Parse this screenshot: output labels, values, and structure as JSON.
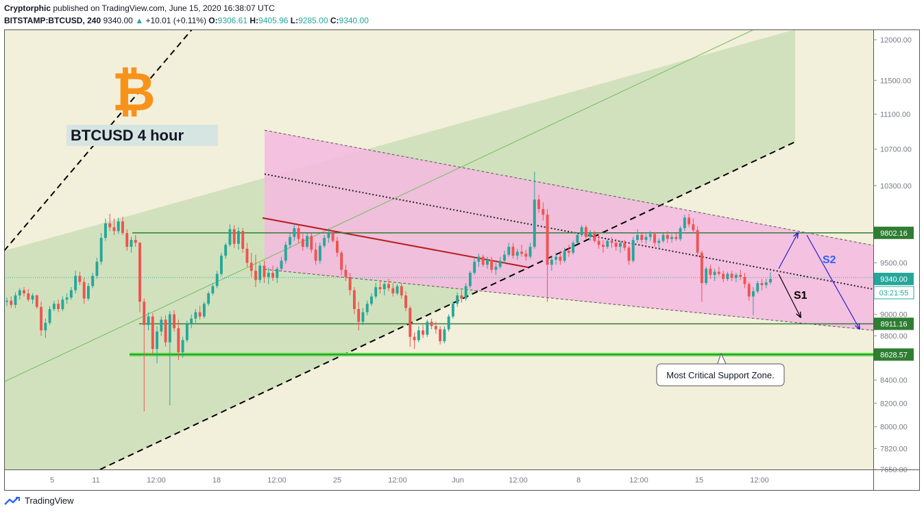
{
  "header": {
    "author": "Cryptorphic",
    "published_text": "published on TradingView.com, June 15, 2020 16:38:07 UTC",
    "symbol": "BITSTAMP:BTCUSD, 240",
    "last": "9340.00",
    "change_arrow": "▲",
    "change": "+10.01 (+0.11%)",
    "o_label": "O:",
    "o_value": "9306.61",
    "h_label": "H:",
    "h_value": "9405.96",
    "l_label": "L:",
    "l_value": "9285.00",
    "c_label": "C:",
    "c_value": "9340.00"
  },
  "footer": {
    "brand": "TradingView",
    "logo_icon": "tradingview-logo-icon"
  },
  "chart_data": {
    "type": "candlestick",
    "title": "BTCUSD 4 hour",
    "logo": "₿",
    "ylim": [
      7650,
      12150
    ],
    "y_scale": "log",
    "y_ticks": [
      7650,
      7820,
      8000,
      8200,
      8400,
      8800,
      9000,
      9500,
      9800,
      10300,
      10700,
      11100,
      11500,
      12000
    ],
    "y_tick_labels": [
      "7650.00",
      "7820.00",
      "8000.00",
      "8200.00",
      "8400.00",
      "8800.00",
      "9000.00",
      "9500.00",
      "9800.00",
      "10300.00",
      "10700.00",
      "11100.00",
      "11500.00",
      "12000.00"
    ],
    "x_tick_labels": [
      "5",
      "11",
      "12:00",
      "18",
      "12:00",
      "25",
      "12:00",
      "Jun",
      "12:00",
      "8",
      "12:00",
      "15",
      "12:00"
    ],
    "price_labels": [
      {
        "value": 9802.16,
        "label": "9802.16",
        "color": "#2e7d32"
      },
      {
        "value": 9340.0,
        "label": "9340.00",
        "color": "#26a69a"
      },
      {
        "value": 8911.16,
        "label": "8911.16",
        "color": "#2e7d32"
      },
      {
        "value": 8628.57,
        "label": "8628.57",
        "color": "#2e7d32"
      }
    ],
    "countdown_label": "03:21:55",
    "horizontal_levels": [
      9802.16,
      8911.16,
      8628.57
    ],
    "current_price": 9340.0,
    "annotations": [
      "S1",
      "S2",
      "Most Critical Support Zone."
    ],
    "colors": {
      "up": "#26a69a",
      "down": "#ef5350",
      "background": "#f2efda",
      "ascending_channel": "#c5dcb3",
      "descending_channel_fill": "#f5b8e0",
      "level_line": "#2e7d32",
      "support_zone": "#55dd44",
      "projection": "#1e1ed6",
      "s1_arrow": "#000000"
    },
    "candles": [
      [
        9120,
        9160,
        9080,
        9130
      ],
      [
        9130,
        9170,
        9060,
        9090
      ],
      [
        9090,
        9210,
        9060,
        9180
      ],
      [
        9180,
        9250,
        9140,
        9230
      ],
      [
        9230,
        9260,
        9170,
        9200
      ],
      [
        9200,
        9240,
        9120,
        9140
      ],
      [
        9140,
        9200,
        9100,
        9180
      ],
      [
        9180,
        9190,
        9050,
        9070
      ],
      [
        9070,
        9120,
        8800,
        8850
      ],
      [
        8850,
        8960,
        8780,
        8920
      ],
      [
        8920,
        9080,
        8900,
        9050
      ],
      [
        9050,
        9130,
        9030,
        9100
      ],
      [
        9100,
        9140,
        9020,
        9050
      ],
      [
        9050,
        9170,
        9030,
        9140
      ],
      [
        9140,
        9200,
        9100,
        9160
      ],
      [
        9160,
        9260,
        9140,
        9230
      ],
      [
        9230,
        9420,
        9200,
        9370
      ],
      [
        9370,
        9410,
        9280,
        9310
      ],
      [
        9310,
        9350,
        9100,
        9150
      ],
      [
        9150,
        9300,
        9130,
        9270
      ],
      [
        9270,
        9400,
        9250,
        9370
      ],
      [
        9370,
        9550,
        9340,
        9510
      ],
      [
        9510,
        9800,
        9480,
        9750
      ],
      [
        9750,
        9950,
        9720,
        9900
      ],
      [
        9900,
        10000,
        9820,
        9860
      ],
      [
        9860,
        9950,
        9780,
        9820
      ],
      [
        9820,
        9960,
        9790,
        9920
      ],
      [
        9920,
        9970,
        9780,
        9800
      ],
      [
        9800,
        9840,
        9620,
        9660
      ],
      [
        9660,
        9760,
        9600,
        9730
      ],
      [
        9730,
        9780,
        9660,
        9700
      ],
      [
        9700,
        9710,
        9020,
        9120
      ],
      [
        9120,
        9150,
        8130,
        8900
      ],
      [
        8900,
        9020,
        8850,
        8980
      ],
      [
        8980,
        9010,
        8620,
        8680
      ],
      [
        8680,
        8890,
        8550,
        8840
      ],
      [
        8840,
        8980,
        8800,
        8950
      ],
      [
        8950,
        8990,
        8700,
        8740
      ],
      [
        8740,
        9030,
        8180,
        9000
      ],
      [
        9000,
        9040,
        8840,
        8870
      ],
      [
        8870,
        8950,
        8580,
        8650
      ],
      [
        8650,
        8790,
        8600,
        8760
      ],
      [
        8760,
        8940,
        8740,
        8910
      ],
      [
        8910,
        9000,
        8870,
        8960
      ],
      [
        8960,
        9050,
        8920,
        9020
      ],
      [
        9020,
        9080,
        8950,
        8980
      ],
      [
        8980,
        9120,
        8960,
        9100
      ],
      [
        9100,
        9220,
        9080,
        9200
      ],
      [
        9200,
        9300,
        9180,
        9270
      ],
      [
        9270,
        9420,
        9250,
        9390
      ],
      [
        9390,
        9600,
        9370,
        9570
      ],
      [
        9570,
        9700,
        9540,
        9680
      ],
      [
        9680,
        9890,
        9660,
        9840
      ],
      [
        9840,
        9880,
        9650,
        9690
      ],
      [
        9690,
        9860,
        9630,
        9820
      ],
      [
        9820,
        9850,
        9600,
        9640
      ],
      [
        9640,
        9700,
        9460,
        9500
      ],
      [
        9500,
        9600,
        9360,
        9420
      ],
      [
        9420,
        9580,
        9260,
        9330
      ],
      [
        9330,
        9500,
        9300,
        9470
      ],
      [
        9470,
        9520,
        9300,
        9360
      ],
      [
        9360,
        9450,
        9290,
        9400
      ],
      [
        9400,
        9470,
        9320,
        9350
      ],
      [
        9350,
        9460,
        9300,
        9440
      ],
      [
        9440,
        9560,
        9420,
        9520
      ],
      [
        9520,
        9710,
        9490,
        9680
      ],
      [
        9680,
        9800,
        9650,
        9760
      ],
      [
        9760,
        9900,
        9720,
        9850
      ],
      [
        9850,
        9880,
        9700,
        9740
      ],
      [
        9740,
        9800,
        9620,
        9660
      ],
      [
        9660,
        9800,
        9640,
        9770
      ],
      [
        9770,
        9800,
        9600,
        9630
      ],
      [
        9630,
        9700,
        9480,
        9520
      ],
      [
        9520,
        9700,
        9490,
        9670
      ],
      [
        9670,
        9780,
        9650,
        9750
      ],
      [
        9750,
        9850,
        9700,
        9800
      ],
      [
        9800,
        9820,
        9700,
        9720
      ],
      [
        9720,
        9760,
        9560,
        9600
      ],
      [
        9600,
        9620,
        9380,
        9430
      ],
      [
        9430,
        9480,
        9320,
        9360
      ],
      [
        9360,
        9400,
        9180,
        9230
      ],
      [
        9230,
        9260,
        9000,
        9050
      ],
      [
        9050,
        9120,
        8850,
        8930
      ],
      [
        8930,
        9060,
        8900,
        9020
      ],
      [
        9020,
        9130,
        8990,
        9100
      ],
      [
        9100,
        9200,
        9080,
        9170
      ],
      [
        9170,
        9300,
        9150,
        9260
      ],
      [
        9260,
        9320,
        9200,
        9240
      ],
      [
        9240,
        9310,
        9180,
        9290
      ],
      [
        9290,
        9340,
        9220,
        9250
      ],
      [
        9250,
        9300,
        9170,
        9200
      ],
      [
        9200,
        9290,
        9180,
        9270
      ],
      [
        9270,
        9300,
        9150,
        9180
      ],
      [
        9180,
        9220,
        9030,
        9060
      ],
      [
        9060,
        9080,
        8700,
        8790
      ],
      [
        8790,
        8830,
        8680,
        8760
      ],
      [
        8760,
        8890,
        8740,
        8850
      ],
      [
        8850,
        8900,
        8780,
        8810
      ],
      [
        8810,
        8950,
        8790,
        8930
      ],
      [
        8930,
        8960,
        8860,
        8890
      ],
      [
        8890,
        8930,
        8820,
        8860
      ],
      [
        8860,
        8890,
        8720,
        8750
      ],
      [
        8750,
        8890,
        8730,
        8860
      ],
      [
        8860,
        9000,
        8840,
        8980
      ],
      [
        8980,
        9120,
        8960,
        9100
      ],
      [
        9100,
        9210,
        9070,
        9180
      ],
      [
        9180,
        9230,
        9110,
        9150
      ],
      [
        9150,
        9300,
        9130,
        9270
      ],
      [
        9270,
        9420,
        9250,
        9400
      ],
      [
        9400,
        9540,
        9380,
        9510
      ],
      [
        9510,
        9590,
        9460,
        9560
      ],
      [
        9560,
        9580,
        9460,
        9480
      ],
      [
        9480,
        9560,
        9440,
        9530
      ],
      [
        9530,
        9560,
        9400,
        9430
      ],
      [
        9430,
        9500,
        9380,
        9460
      ],
      [
        9460,
        9560,
        9440,
        9520
      ],
      [
        9520,
        9620,
        9490,
        9580
      ],
      [
        9580,
        9700,
        9560,
        9660
      ],
      [
        9660,
        9700,
        9540,
        9570
      ],
      [
        9570,
        9640,
        9530,
        9610
      ],
      [
        9610,
        9680,
        9560,
        9590
      ],
      [
        9590,
        9630,
        9520,
        9560
      ],
      [
        9560,
        9700,
        9540,
        9660
      ],
      [
        9660,
        10450,
        9640,
        10150
      ],
      [
        10150,
        10200,
        10010,
        10050
      ],
      [
        10050,
        10120,
        9930,
        9990
      ],
      [
        9990,
        10050,
        9120,
        9480
      ],
      [
        9480,
        9560,
        9420,
        9530
      ],
      [
        9530,
        9600,
        9480,
        9560
      ],
      [
        9560,
        9620,
        9480,
        9520
      ],
      [
        9520,
        9650,
        9500,
        9620
      ],
      [
        9620,
        9680,
        9560,
        9600
      ],
      [
        9600,
        9720,
        9580,
        9700
      ],
      [
        9700,
        9800,
        9690,
        9780
      ],
      [
        9780,
        9880,
        9760,
        9860
      ],
      [
        9860,
        9880,
        9740,
        9760
      ],
      [
        9760,
        9830,
        9720,
        9800
      ],
      [
        9800,
        9820,
        9700,
        9720
      ],
      [
        9720,
        9780,
        9640,
        9680
      ],
      [
        9680,
        9730,
        9600,
        9660
      ],
      [
        9660,
        9740,
        9640,
        9720
      ],
      [
        9720,
        9760,
        9650,
        9700
      ],
      [
        9700,
        9740,
        9620,
        9660
      ],
      [
        9660,
        9720,
        9600,
        9700
      ],
      [
        9700,
        9730,
        9620,
        9650
      ],
      [
        9650,
        9670,
        9480,
        9520
      ],
      [
        9520,
        9760,
        9500,
        9730
      ],
      [
        9730,
        9840,
        9700,
        9780
      ],
      [
        9780,
        9800,
        9700,
        9730
      ],
      [
        9730,
        9790,
        9690,
        9760
      ],
      [
        9760,
        9820,
        9720,
        9790
      ],
      [
        9790,
        9810,
        9660,
        9700
      ],
      [
        9700,
        9750,
        9640,
        9720
      ],
      [
        9720,
        9800,
        9700,
        9780
      ],
      [
        9780,
        9820,
        9700,
        9740
      ],
      [
        9740,
        9790,
        9700,
        9760
      ],
      [
        9760,
        9800,
        9720,
        9740
      ],
      [
        9740,
        9870,
        9720,
        9850
      ],
      [
        9850,
        9990,
        9820,
        9960
      ],
      [
        9960,
        10000,
        9860,
        9890
      ],
      [
        9890,
        9950,
        9800,
        9830
      ],
      [
        9830,
        9870,
        9560,
        9600
      ],
      [
        9600,
        9620,
        9120,
        9300
      ],
      [
        9300,
        9460,
        9280,
        9440
      ],
      [
        9440,
        9480,
        9340,
        9380
      ],
      [
        9380,
        9440,
        9320,
        9410
      ],
      [
        9410,
        9460,
        9370,
        9390
      ],
      [
        9390,
        9420,
        9310,
        9340
      ],
      [
        9340,
        9410,
        9320,
        9390
      ],
      [
        9390,
        9420,
        9320,
        9350
      ],
      [
        9350,
        9400,
        9310,
        9380
      ],
      [
        9380,
        9430,
        9330,
        9360
      ],
      [
        9360,
        9400,
        9250,
        9290
      ],
      [
        9290,
        9310,
        9130,
        9170
      ],
      [
        9170,
        9260,
        8990,
        9220
      ],
      [
        9220,
        9320,
        9200,
        9300
      ],
      [
        9300,
        9340,
        9230,
        9280
      ],
      [
        9280,
        9340,
        9250,
        9306
      ],
      [
        9306.61,
        9405.96,
        9285,
        9340
      ]
    ]
  }
}
